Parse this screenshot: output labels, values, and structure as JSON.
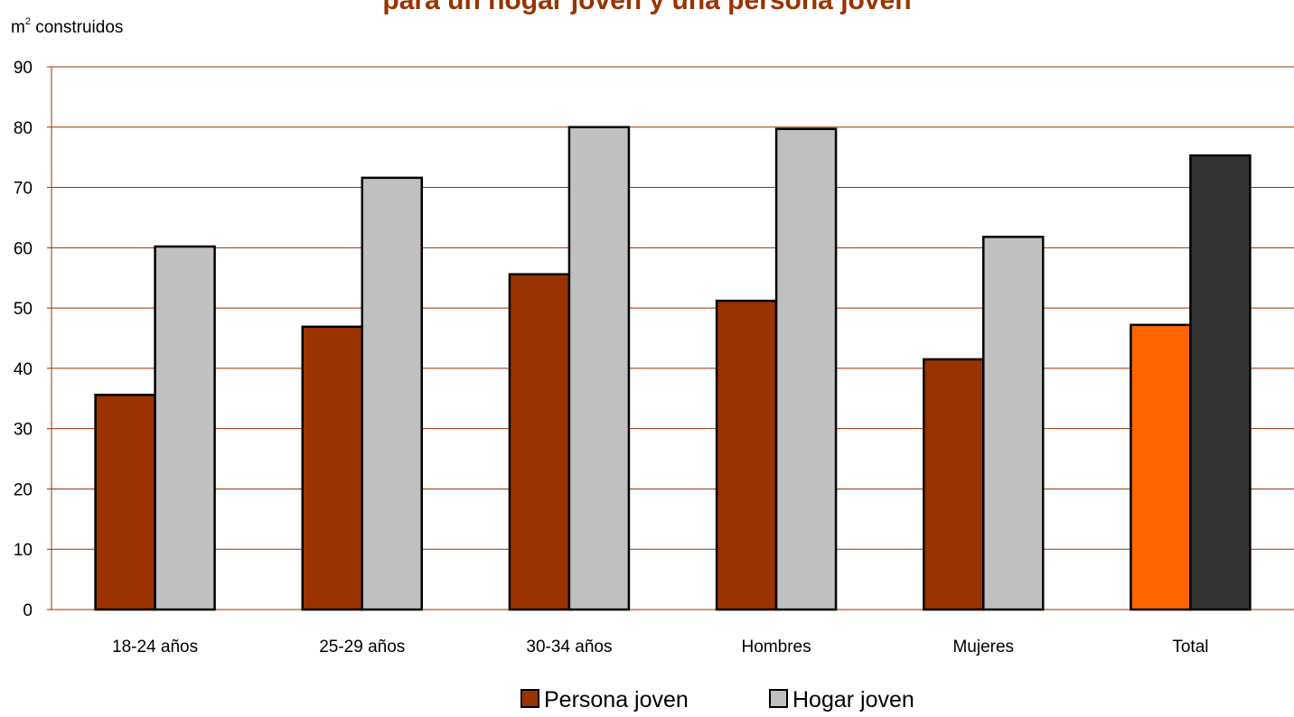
{
  "chart_data": {
    "type": "bar",
    "title": "para un hogar joven y una persona joven",
    "ylabel": {
      "main": "m",
      "superscript": "2",
      "rest": " construidos"
    },
    "xlabel": "",
    "ylim": [
      0,
      90
    ],
    "yticks": [
      0,
      10,
      20,
      30,
      40,
      50,
      60,
      70,
      80,
      90
    ],
    "categories": [
      "18-24 años",
      "25-29 años",
      "30-34 años",
      "Hombres",
      "Mujeres",
      "Total"
    ],
    "series": [
      {
        "name": "Persona joven",
        "values": [
          35.6,
          46.9,
          55.6,
          51.2,
          41.5,
          47.2
        ],
        "color": "#993300",
        "highlight_color": "#ff6600"
      },
      {
        "name": "Hogar joven",
        "values": [
          60.2,
          71.6,
          80.0,
          79.7,
          61.8,
          75.3
        ],
        "color": "#c0c0c0",
        "highlight_color": "#333333"
      }
    ],
    "highlight_category": "Total",
    "grid": true,
    "gridline_color": "#993300",
    "legend_position": "bottom-center"
  }
}
